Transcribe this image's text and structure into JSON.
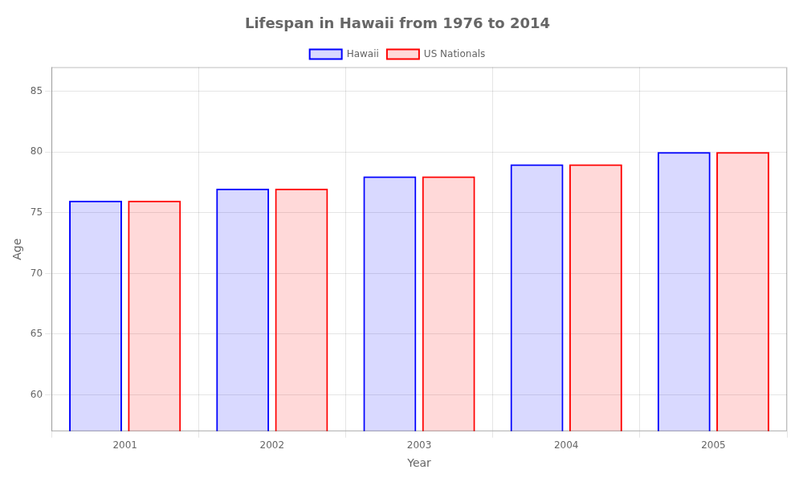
{
  "chart_data": {
    "type": "bar",
    "title": "Lifespan in Hawaii from 1976 to 2014",
    "x_label": "Year",
    "y_label": "Age",
    "categories": [
      "2001",
      "2002",
      "2003",
      "2004",
      "2005"
    ],
    "series": [
      {
        "name": "Hawaii",
        "color": "#0000ff",
        "values": [
          76,
          77,
          78,
          79,
          80
        ]
      },
      {
        "name": "US Nationals",
        "color": "#ff0000",
        "values": [
          76,
          77,
          78,
          79,
          80
        ]
      }
    ],
    "ylim": [
      57,
      87
    ],
    "yticks": [
      60,
      65,
      70,
      75,
      80,
      85
    ],
    "grid": true,
    "legend": "top"
  }
}
